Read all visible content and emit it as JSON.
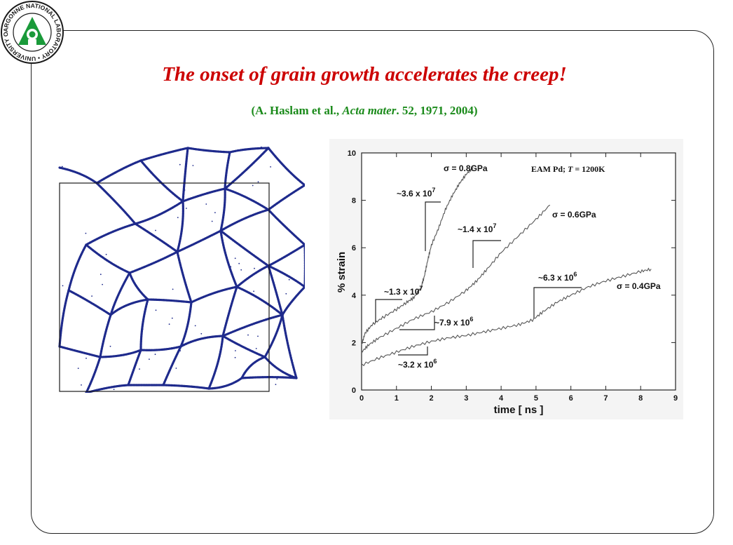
{
  "slide": {
    "title": "The onset of grain growth accelerates the creep!",
    "citation": {
      "open": "(A. Haslam et al., ",
      "journal": "Acta mater",
      "rest": ". 52, 1971, 2004)"
    },
    "logo": {
      "text": "ARGONNE NATIONAL LABORATORY • UNIVERSITY OF CHICAGO •"
    },
    "colors": {
      "title": "#cc0000",
      "citation": "#1a8a1a",
      "logo_green": "#1a9a3a",
      "grain_boundaries": "#1e2a8c"
    }
  },
  "chart_data": {
    "type": "line",
    "xlabel": "time [ ns ]",
    "ylabel": "% strain",
    "xlim": [
      0,
      9
    ],
    "ylim": [
      0,
      10
    ],
    "xticks": [
      0,
      1,
      2,
      3,
      4,
      5,
      6,
      7,
      8,
      9
    ],
    "yticks": [
      0,
      2,
      4,
      6,
      8,
      10
    ],
    "header_text": {
      "prefix": "EAM Pd; ",
      "var": "T",
      "suffix": " = 1200K"
    },
    "series": [
      {
        "name": "σ = 0.8GPa",
        "x": [
          0,
          0.1,
          0.3,
          0.6,
          1.0,
          1.3,
          1.5,
          1.7,
          1.8,
          1.9,
          2.0,
          2.2,
          2.4,
          2.6,
          2.8,
          3.0,
          3.2
        ],
        "y": [
          1.9,
          2.4,
          2.75,
          3.05,
          3.4,
          3.7,
          3.9,
          4.3,
          4.8,
          5.5,
          6.1,
          6.8,
          7.6,
          8.2,
          8.7,
          9.1,
          9.4
        ]
      },
      {
        "name": "σ = 0.6GPa",
        "x": [
          0,
          0.2,
          0.5,
          1.0,
          1.5,
          2.0,
          2.5,
          3.0,
          3.3,
          3.6,
          4.0,
          4.5,
          5.0,
          5.4
        ],
        "y": [
          1.6,
          1.9,
          2.2,
          2.6,
          3.0,
          3.3,
          3.7,
          4.2,
          4.6,
          5.1,
          5.8,
          6.5,
          7.2,
          7.8
        ]
      },
      {
        "name": "σ = 0.4GPa",
        "x": [
          0,
          0.5,
          1.0,
          1.5,
          2.0,
          2.5,
          3.0,
          3.5,
          4.0,
          4.5,
          4.9,
          5.2,
          5.6,
          6.0,
          6.5,
          7.0,
          7.5,
          8.0,
          8.3
        ],
        "y": [
          1.05,
          1.35,
          1.6,
          1.85,
          2.05,
          2.2,
          2.3,
          2.45,
          2.6,
          2.75,
          2.95,
          3.3,
          3.7,
          4.0,
          4.35,
          4.6,
          4.8,
          5.0,
          5.1
        ]
      }
    ],
    "slope_annotations": [
      {
        "mantissa": "~3.6 x 10",
        "exp": "7"
      },
      {
        "mantissa": "~1.3 x 10",
        "exp": "7"
      },
      {
        "mantissa": "~1.4 x 10",
        "exp": "7"
      },
      {
        "mantissa": "~7.9 x 10",
        "exp": "6"
      },
      {
        "mantissa": "~3.2 x 10",
        "exp": "6"
      },
      {
        "mantissa": "~6.3 x 10",
        "exp": "6"
      }
    ]
  }
}
